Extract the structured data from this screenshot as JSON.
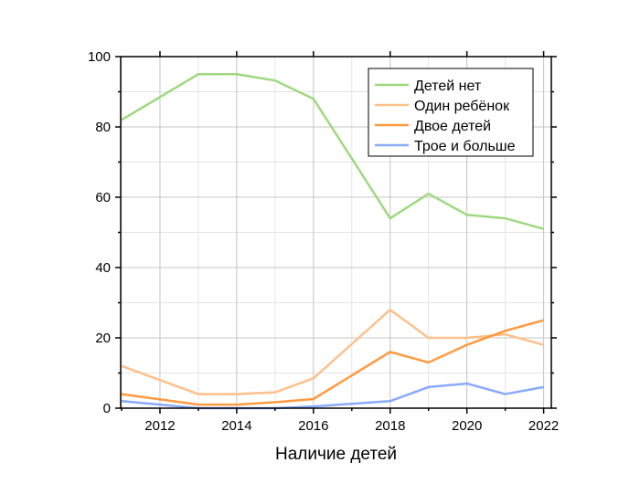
{
  "chart_data": {
    "type": "line",
    "title": "",
    "xlabel": "Наличие детей",
    "ylabel": "",
    "xlim": [
      2011,
      2022.2
    ],
    "ylim": [
      0,
      100
    ],
    "xticks": [
      2012,
      2014,
      2016,
      2018,
      2020,
      2022
    ],
    "yticks": [
      0,
      20,
      40,
      60,
      80,
      100
    ],
    "grid": true,
    "legend": "top-right",
    "x": [
      2011,
      2013,
      2014,
      2015,
      2016,
      2018,
      2019,
      2020,
      2021,
      2022
    ],
    "series": [
      {
        "name": "Детей нет",
        "color": "#a0d880",
        "values": [
          82,
          95,
          95,
          93.2,
          88,
          54,
          61,
          55,
          54,
          51
        ]
      },
      {
        "name": "Один ребёнок",
        "color": "#ffc08a",
        "values": [
          12,
          4,
          4,
          4.5,
          8.5,
          28,
          20,
          20,
          21,
          18
        ]
      },
      {
        "name": "Двое детей",
        "color": "#ff9a40",
        "values": [
          4,
          1,
          1,
          1.7,
          2.6,
          16,
          13,
          18,
          22,
          25
        ]
      },
      {
        "name": "Трое и больше",
        "color": "#8aaaff",
        "values": [
          2,
          0,
          0,
          0,
          0.5,
          2,
          6,
          7,
          4,
          6
        ]
      }
    ]
  }
}
